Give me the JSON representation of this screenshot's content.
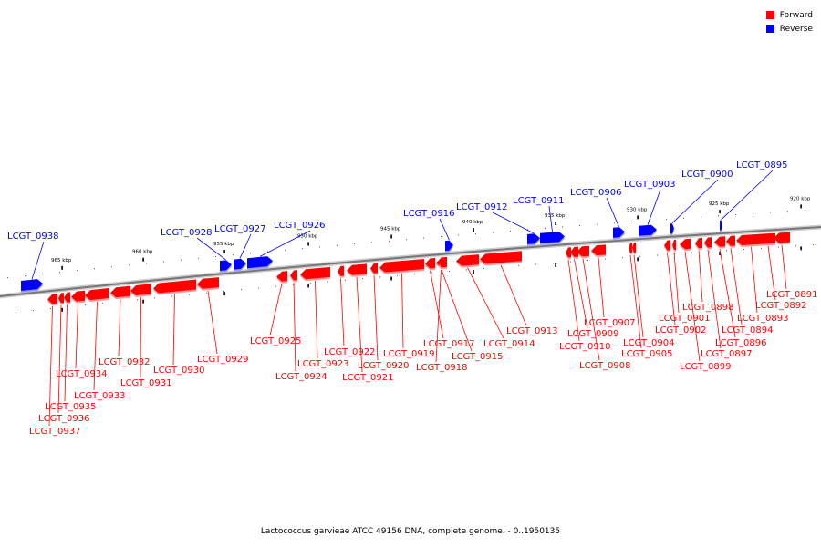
{
  "legend": {
    "items": [
      {
        "label": "Forward",
        "color": "#ff0000"
      },
      {
        "label": "Reverse",
        "color": "#0000ff"
      }
    ]
  },
  "caption": "Lactococcus garvieae ATCC 49156 DNA, complete genome. - 0..1950135",
  "colors": {
    "forward": "#ff0000",
    "reverse": "#0000ff",
    "backbone": "#777777"
  },
  "ticks": [
    "965 kbp",
    "960 kbp",
    "955 kbp",
    "950 kbp",
    "945 kbp",
    "940 kbp",
    "935 kbp",
    "930 kbp",
    "925 kbp",
    "920 kbp"
  ],
  "genes_forward": [
    "LCGT_0891",
    "LCGT_0892",
    "LCGT_0893",
    "LCGT_0894",
    "LCGT_0896",
    "LCGT_0897",
    "LCGT_0898",
    "LCGT_0899",
    "LCGT_0901",
    "LCGT_0902",
    "LCGT_0904",
    "LCGT_0905",
    "LCGT_0907",
    "LCGT_0908",
    "LCGT_0909",
    "LCGT_0910",
    "LCGT_0913",
    "LCGT_0914",
    "LCGT_0915",
    "LCGT_0917",
    "LCGT_0918",
    "LCGT_0919",
    "LCGT_0920",
    "LCGT_0921",
    "LCGT_0922",
    "LCGT_0923",
    "LCGT_0924",
    "LCGT_0925",
    "LCGT_0929",
    "LCGT_0930",
    "LCGT_0931",
    "LCGT_0932",
    "LCGT_0933",
    "LCGT_0934",
    "LCGT_0935",
    "LCGT_0936",
    "LCGT_0937"
  ],
  "genes_reverse": [
    "LCGT_0938",
    "LCGT_0928",
    "LCGT_0927",
    "LCGT_0926",
    "LCGT_0916",
    "LCGT_0912",
    "LCGT_0911",
    "LCGT_0906",
    "LCGT_0903",
    "LCGT_0900",
    "LCGT_0895"
  ]
}
